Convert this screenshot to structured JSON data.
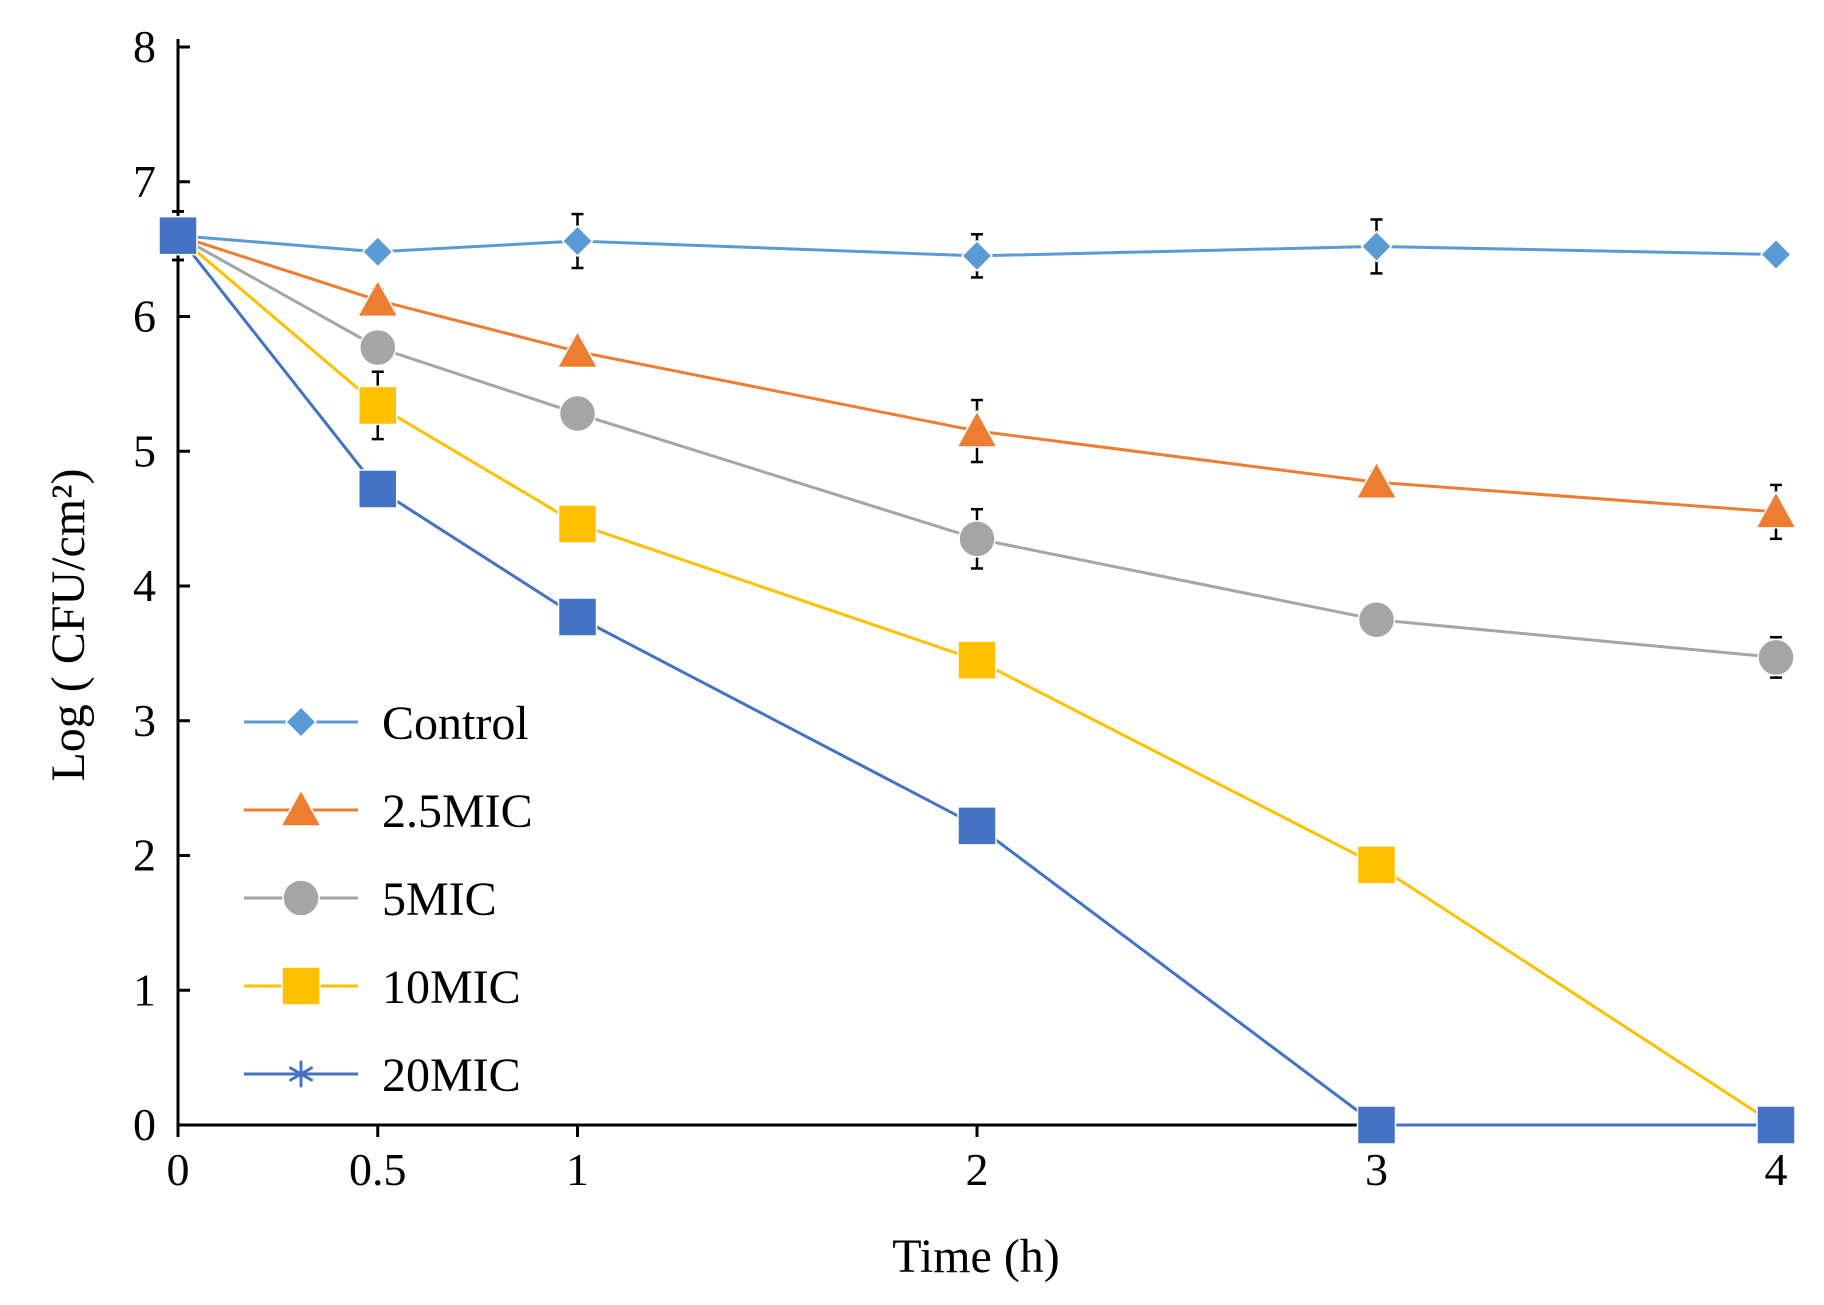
{
  "chart_data": {
    "type": "line",
    "title": "",
    "xlabel": "Time (h)",
    "ylabel": "Log ( CFU/cm²)",
    "x": [
      0,
      0.5,
      1,
      2,
      3,
      4
    ],
    "x_tick_labels": [
      "0",
      "0.5",
      "1",
      "2",
      "3",
      "4"
    ],
    "y_ticks": [
      0,
      1,
      2,
      3,
      4,
      5,
      6,
      7,
      8
    ],
    "xlim": [
      0,
      4
    ],
    "ylim": [
      0,
      8
    ],
    "grid": false,
    "legend_position": "bottom-left",
    "series": [
      {
        "name": "Control",
        "marker": "diamond",
        "color": "#5b9bd5",
        "values": [
          6.6,
          6.48,
          6.56,
          6.45,
          6.52,
          6.46
        ],
        "errors": [
          0.18,
          0.05,
          0.2,
          0.16,
          0.2,
          0.05
        ]
      },
      {
        "name": "2.5MIC",
        "marker": "triangle",
        "color": "#ed7d31",
        "values": [
          6.6,
          6.12,
          5.74,
          5.15,
          4.77,
          4.55
        ],
        "errors": [
          0.18,
          0.08,
          0.08,
          0.23,
          0.08,
          0.2
        ]
      },
      {
        "name": "5MIC",
        "marker": "circle",
        "color": "#a5a5a5",
        "values": [
          6.6,
          5.77,
          5.28,
          4.35,
          3.75,
          3.47
        ],
        "errors": [
          0.18,
          0.08,
          0.08,
          0.22,
          0.1,
          0.15
        ]
      },
      {
        "name": "10MIC",
        "marker": "square",
        "color": "#ffc000",
        "values": [
          6.6,
          5.34,
          4.46,
          3.45,
          1.93,
          0
        ],
        "errors": [
          0.18,
          0.25,
          0.08,
          0.08,
          0.08,
          0
        ]
      },
      {
        "name": "20MIC",
        "marker": "square",
        "legend_marker": "star",
        "color": "#4472c4",
        "values": [
          6.6,
          4.72,
          3.77,
          2.22,
          0,
          0
        ],
        "errors": [
          0.18,
          0.08,
          0.08,
          0.08,
          0,
          0
        ]
      }
    ]
  }
}
